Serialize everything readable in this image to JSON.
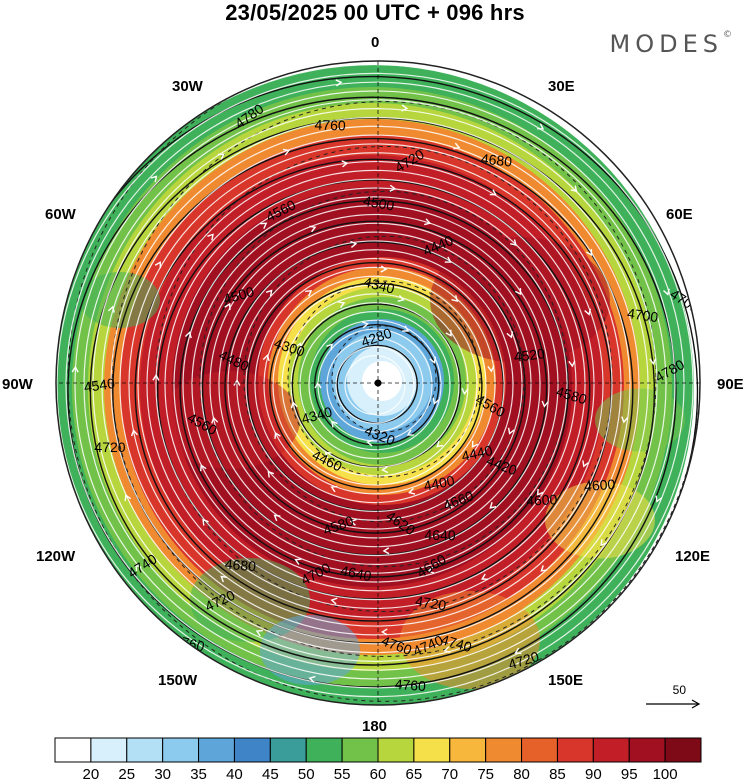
{
  "title": "23/05/2025  00 UTC  + 096 hrs",
  "brand": "MODES",
  "brand_mark": "©",
  "lon_labels": {
    "n": "0",
    "nw": "30W",
    "ne": "30E",
    "w60": "60W",
    "e60": "60E",
    "w90": "90W",
    "e90": "90E",
    "w120": "120W",
    "e120": "120E",
    "w150": "150W",
    "e150": "150E",
    "s": "180"
  },
  "contour_labels": [
    "4780",
    "4760",
    "4720",
    "4680",
    "4560",
    "4500",
    "4440",
    "4340",
    "4280",
    "4300",
    "4340",
    "4320",
    "4400",
    "4460",
    "4520",
    "4560",
    "4600",
    "4620",
    "4640",
    "4660",
    "4680",
    "4700",
    "4720",
    "4740",
    "4760",
    "4580",
    "4580",
    "4500",
    "4420",
    "4440",
    "4480",
    "4540",
    "4560",
    "4600",
    "4700",
    "4720",
    "4740",
    "4760",
    "4780",
    "4700",
    "4720",
    "4640",
    "4660",
    "4740",
    "4720",
    "4760"
  ],
  "scale_label": "50",
  "colorbar": {
    "ticks": [
      "20",
      "25",
      "30",
      "35",
      "40",
      "45",
      "50",
      "55",
      "60",
      "65",
      "70",
      "75",
      "80",
      "85",
      "90",
      "95",
      "100"
    ],
    "colors": [
      "#ffffff",
      "#d8f0fb",
      "#b3e0f5",
      "#8ccaee",
      "#5ea6da",
      "#3f84c6",
      "#3a9d9a",
      "#3fb15a",
      "#72c24a",
      "#b7d63e",
      "#f5e04a",
      "#f6b73c",
      "#f08a30",
      "#e6602a",
      "#d8362b",
      "#c11e28",
      "#a01021",
      "#7f0a17"
    ]
  },
  "rings": [
    {
      "r": 20,
      "c": "#ffffff"
    },
    {
      "r": 35,
      "c": "#d8f0fb"
    },
    {
      "r": 50,
      "c": "#8ccaee"
    },
    {
      "r": 62,
      "c": "#5ea6da"
    },
    {
      "r": 72,
      "c": "#3fb15a"
    },
    {
      "r": 84,
      "c": "#72c24a"
    },
    {
      "r": 94,
      "c": "#b7d63e"
    },
    {
      "r": 104,
      "c": "#f5e04a"
    },
    {
      "r": 114,
      "c": "#f08a30"
    },
    {
      "r": 124,
      "c": "#d8362b"
    },
    {
      "r": 200,
      "c": "#a01021"
    },
    {
      "r": 232,
      "c": "#c11e28"
    },
    {
      "r": 252,
      "c": "#d8362b"
    },
    {
      "r": 268,
      "c": "#f08a30"
    },
    {
      "r": 284,
      "c": "#b7d63e"
    },
    {
      "r": 300,
      "c": "#72c24a"
    },
    {
      "r": 312,
      "c": "#3fb15a"
    },
    {
      "r": 322,
      "c": "#3fb15a"
    }
  ]
}
